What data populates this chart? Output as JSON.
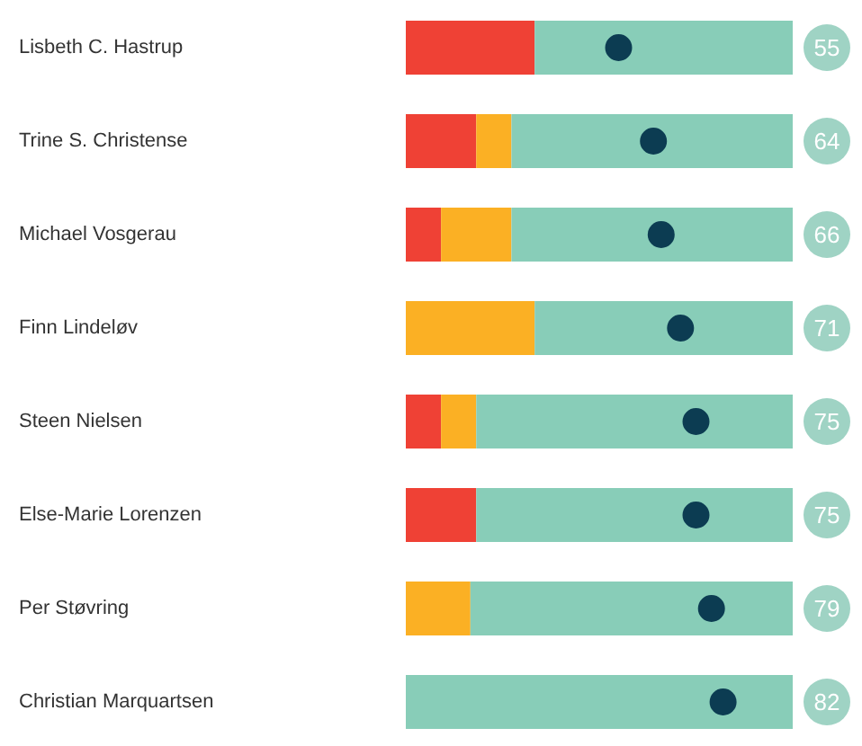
{
  "chart_data": {
    "type": "bar",
    "orientation": "horizontal",
    "stacked": true,
    "categories": [
      "Lisbeth C. Hastrup",
      "Trine S. Christense",
      "Michael Vosgerau",
      "Finn Lindeløv",
      "Steen Nielsen",
      "Else-Marie Lorenzen",
      "Per Støvring",
      "Christian Marquartsen"
    ],
    "series": [
      {
        "color": "#ef4135",
        "values": [
          33.3,
          18.2,
          9.1,
          0,
          9.1,
          18.2,
          0,
          0
        ]
      },
      {
        "color": "#fbb024",
        "values": [
          0,
          9.1,
          18.2,
          33.3,
          9.1,
          0,
          16.7,
          0
        ]
      },
      {
        "color": "#88cdb8",
        "values": [
          66.7,
          72.7,
          72.7,
          66.7,
          81.8,
          81.8,
          83.3,
          100
        ]
      },
      {
        "type": "scatter",
        "color": "#0c3c52",
        "marker": "circle",
        "values": [
          55,
          64,
          66,
          71,
          75,
          75,
          79,
          82
        ],
        "value_labels": [
          "55",
          "64",
          "66",
          "71",
          "75",
          "75",
          "79",
          "82"
        ]
      }
    ],
    "xlim": [
      0,
      100
    ],
    "tick_labels": false,
    "grid": false
  }
}
